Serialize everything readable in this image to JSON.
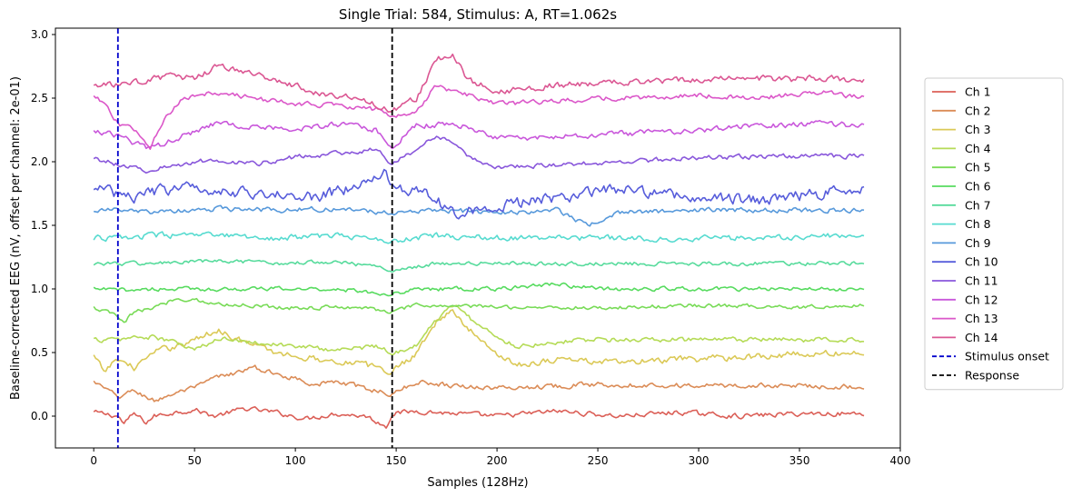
{
  "chart_data": {
    "type": "line",
    "title": "Single Trial: 584, Stimulus: A, RT=1.062s",
    "xlabel": "Samples (128Hz)",
    "ylabel": "Baseline-corrected EEG (nV, offset per channel: 2e-01)",
    "xlim": [
      -19,
      400
    ],
    "ylim": [
      -0.25,
      3.05
    ],
    "xticks": [
      0,
      50,
      100,
      150,
      200,
      250,
      300,
      350,
      400
    ],
    "yticks": [
      0.0,
      0.5,
      1.0,
      1.5,
      2.0,
      2.5,
      3.0
    ],
    "xtick_labels": [
      "0",
      "50",
      "100",
      "150",
      "200",
      "250",
      "300",
      "350",
      "400"
    ],
    "ytick_labels": [
      "0.0",
      "0.5",
      "1.0",
      "1.5",
      "2.0",
      "2.5",
      "3.0"
    ],
    "grid": false,
    "legend_position": "right",
    "n_samples": 383,
    "series": [
      {
        "name": "Ch 1",
        "color": "#db5f57",
        "offset": 0.0,
        "amplitude": 0.03,
        "x": [
          0,
          12,
          15,
          20,
          26,
          30,
          40,
          50,
          60,
          75,
          90,
          105,
          120,
          135,
          145,
          148,
          160,
          180,
          200,
          230,
          260,
          290,
          320,
          350,
          382
        ],
        "y": [
          0.03,
          0.0,
          -0.06,
          0.02,
          -0.05,
          0.0,
          0.03,
          0.05,
          0.0,
          0.06,
          0.03,
          -0.02,
          0.02,
          0.0,
          -0.08,
          0.02,
          0.04,
          0.02,
          0.0,
          0.04,
          0.0,
          0.03,
          0.0,
          0.02,
          0.02
        ]
      },
      {
        "name": "Ch 2",
        "color": "#db8c57",
        "offset": 0.2,
        "amplitude": 0.03,
        "x": [
          0,
          12,
          20,
          30,
          40,
          50,
          60,
          70,
          80,
          90,
          100,
          110,
          120,
          135,
          148,
          160,
          180,
          200,
          250,
          300,
          350,
          382
        ],
        "y": [
          0.27,
          0.15,
          0.2,
          0.12,
          0.18,
          0.22,
          0.3,
          0.34,
          0.38,
          0.33,
          0.3,
          0.25,
          0.27,
          0.22,
          0.17,
          0.27,
          0.24,
          0.22,
          0.25,
          0.24,
          0.24,
          0.23
        ]
      },
      {
        "name": "Ch 3",
        "color": "#dbc957",
        "offset": 0.4,
        "amplitude": 0.04,
        "x": [
          0,
          5,
          12,
          20,
          30,
          40,
          50,
          62,
          75,
          90,
          110,
          130,
          148,
          160,
          170,
          178,
          185,
          195,
          210,
          230,
          260,
          300,
          340,
          382
        ],
        "y": [
          0.47,
          0.35,
          0.45,
          0.38,
          0.5,
          0.55,
          0.6,
          0.68,
          0.58,
          0.5,
          0.45,
          0.42,
          0.35,
          0.5,
          0.75,
          0.82,
          0.7,
          0.55,
          0.4,
          0.45,
          0.42,
          0.45,
          0.48,
          0.5
        ]
      },
      {
        "name": "Ch 4",
        "color": "#b5db57",
        "offset": 0.6,
        "amplitude": 0.03,
        "x": [
          0,
          12,
          20,
          30,
          40,
          50,
          65,
          80,
          100,
          120,
          140,
          148,
          160,
          168,
          175,
          182,
          190,
          200,
          210,
          240,
          280,
          320,
          360,
          382
        ],
        "y": [
          0.6,
          0.6,
          0.62,
          0.62,
          0.58,
          0.52,
          0.62,
          0.58,
          0.55,
          0.52,
          0.55,
          0.5,
          0.55,
          0.72,
          0.85,
          0.85,
          0.72,
          0.62,
          0.55,
          0.6,
          0.6,
          0.6,
          0.6,
          0.6
        ]
      },
      {
        "name": "Ch 5",
        "color": "#78db57",
        "offset": 0.8,
        "amplitude": 0.025,
        "x": [
          0,
          10,
          15,
          20,
          30,
          40,
          50,
          60,
          80,
          100,
          130,
          148,
          160,
          200,
          250,
          300,
          350,
          382
        ],
        "y": [
          0.85,
          0.8,
          0.73,
          0.82,
          0.85,
          0.92,
          0.92,
          0.88,
          0.87,
          0.85,
          0.86,
          0.82,
          0.87,
          0.86,
          0.85,
          0.87,
          0.86,
          0.87
        ]
      },
      {
        "name": "Ch 6",
        "color": "#57db5f",
        "offset": 1.0,
        "amplitude": 0.025,
        "x": [
          0,
          12,
          30,
          60,
          90,
          120,
          148,
          160,
          200,
          230,
          250,
          270,
          300,
          330,
          360,
          382
        ],
        "y": [
          1.0,
          0.99,
          1.0,
          1.0,
          1.0,
          1.0,
          0.96,
          1.0,
          1.0,
          1.04,
          1.0,
          1.0,
          1.0,
          1.0,
          1.0,
          1.0
        ]
      },
      {
        "name": "Ch 7",
        "color": "#57db9c",
        "offset": 1.2,
        "amplitude": 0.025,
        "x": [
          0,
          12,
          30,
          60,
          90,
          120,
          148,
          170,
          200,
          230,
          270,
          300,
          330,
          360,
          382
        ],
        "y": [
          1.2,
          1.2,
          1.2,
          1.22,
          1.2,
          1.22,
          1.15,
          1.2,
          1.2,
          1.2,
          1.2,
          1.2,
          1.2,
          1.2,
          1.2
        ]
      },
      {
        "name": "Ch 8",
        "color": "#57dbd0",
        "offset": 1.4,
        "amplitude": 0.035,
        "x": [
          0,
          12,
          30,
          60,
          90,
          120,
          148,
          170,
          200,
          230,
          270,
          300,
          330,
          360,
          382
        ],
        "y": [
          1.4,
          1.4,
          1.42,
          1.42,
          1.4,
          1.42,
          1.38,
          1.42,
          1.4,
          1.4,
          1.4,
          1.4,
          1.4,
          1.42,
          1.42
        ]
      },
      {
        "name": "Ch 9",
        "color": "#5799db",
        "offset": 1.6,
        "amplitude": 0.03,
        "x": [
          0,
          12,
          30,
          60,
          90,
          120,
          148,
          170,
          200,
          230,
          245,
          260,
          300,
          330,
          360,
          382
        ],
        "y": [
          1.62,
          1.62,
          1.6,
          1.63,
          1.62,
          1.63,
          1.6,
          1.62,
          1.6,
          1.62,
          1.5,
          1.6,
          1.62,
          1.62,
          1.62,
          1.62
        ]
      },
      {
        "name": "Ch 10",
        "color": "#575ddb",
        "offset": 1.8,
        "amplitude": 0.07,
        "x": [
          0,
          12,
          20,
          35,
          50,
          80,
          110,
          135,
          145,
          148,
          160,
          180,
          200,
          230,
          260,
          280,
          300,
          330,
          360,
          382
        ],
        "y": [
          1.8,
          1.75,
          1.72,
          1.78,
          1.8,
          1.75,
          1.72,
          1.82,
          1.95,
          1.8,
          1.78,
          1.6,
          1.65,
          1.72,
          1.78,
          1.75,
          1.72,
          1.7,
          1.75,
          1.8
        ]
      },
      {
        "name": "Ch 11",
        "color": "#8957db",
        "offset": 2.0,
        "amplitude": 0.03,
        "x": [
          0,
          12,
          28,
          40,
          60,
          80,
          100,
          120,
          140,
          148,
          160,
          170,
          180,
          190,
          200,
          230,
          260,
          300,
          330,
          360,
          382
        ],
        "y": [
          2.03,
          1.98,
          1.93,
          1.97,
          2.02,
          1.98,
          2.04,
          2.06,
          2.1,
          1.98,
          2.1,
          2.2,
          2.12,
          2.0,
          1.96,
          1.97,
          2.0,
          2.03,
          2.04,
          2.05,
          2.04
        ]
      },
      {
        "name": "Ch 12",
        "color": "#c957db",
        "offset": 2.2,
        "amplitude": 0.035,
        "x": [
          0,
          12,
          20,
          28,
          40,
          60,
          80,
          100,
          120,
          140,
          148,
          160,
          180,
          200,
          230,
          260,
          300,
          330,
          360,
          382
        ],
        "y": [
          2.25,
          2.2,
          2.15,
          2.1,
          2.18,
          2.3,
          2.28,
          2.25,
          2.3,
          2.25,
          2.12,
          2.28,
          2.3,
          2.18,
          2.2,
          2.22,
          2.25,
          2.28,
          2.3,
          2.28
        ]
      },
      {
        "name": "Ch 13",
        "color": "#db57c9",
        "offset": 2.4,
        "amplitude": 0.03,
        "x": [
          0,
          5,
          12,
          20,
          28,
          35,
          45,
          60,
          80,
          100,
          120,
          135,
          145,
          148,
          160,
          170,
          180,
          200,
          230,
          260,
          300,
          330,
          360,
          382
        ],
        "y": [
          2.52,
          2.45,
          2.3,
          2.25,
          2.12,
          2.35,
          2.5,
          2.55,
          2.5,
          2.45,
          2.45,
          2.42,
          2.4,
          2.35,
          2.4,
          2.6,
          2.55,
          2.45,
          2.48,
          2.5,
          2.52,
          2.5,
          2.55,
          2.5
        ]
      },
      {
        "name": "Ch 14",
        "color": "#db5793",
        "offset": 2.6,
        "amplitude": 0.04,
        "x": [
          0,
          12,
          20,
          40,
          50,
          62,
          75,
          90,
          110,
          130,
          148,
          160,
          170,
          178,
          185,
          200,
          230,
          260,
          300,
          340,
          382
        ],
        "y": [
          2.6,
          2.6,
          2.62,
          2.68,
          2.65,
          2.75,
          2.7,
          2.65,
          2.55,
          2.5,
          2.4,
          2.5,
          2.8,
          2.85,
          2.65,
          2.55,
          2.6,
          2.62,
          2.65,
          2.65,
          2.65
        ]
      }
    ],
    "vlines": [
      {
        "name": "Stimulus onset",
        "x": 12,
        "color": "#0000cc",
        "style": "dashed"
      },
      {
        "name": "Response",
        "x": 148,
        "color": "#000000",
        "style": "dashed"
      }
    ]
  }
}
